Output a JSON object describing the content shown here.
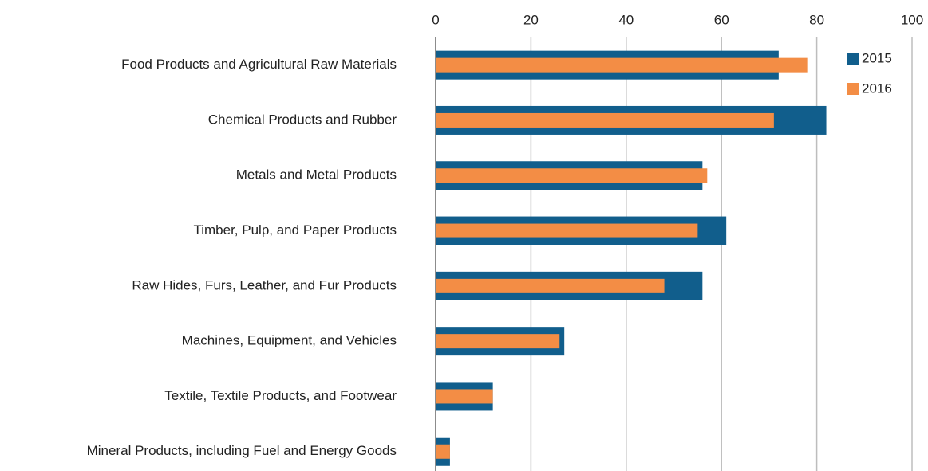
{
  "chart_data": {
    "type": "bar",
    "orientation": "horizontal",
    "categories": [
      "Food Products and Agricultural Raw Materials",
      "Chemical Products and Rubber",
      "Metals and Metal Products",
      "Timber, Pulp, and Paper Products",
      "Raw Hides, Furs, Leather, and Fur Products",
      "Machines, Equipment, and Vehicles",
      "Textile, Textile Products, and Footwear",
      "Mineral Products, including Fuel and Energy Goods"
    ],
    "series": [
      {
        "name": "2015",
        "color": "#115e8c",
        "values": [
          72,
          82,
          56,
          61,
          56,
          27,
          12,
          3
        ]
      },
      {
        "name": "2016",
        "color": "#f38d45",
        "values": [
          78,
          71,
          57,
          55,
          48,
          26,
          12,
          3
        ]
      }
    ],
    "xlim": [
      0,
      100
    ],
    "xticks": [
      0,
      20,
      40,
      60,
      80,
      100
    ],
    "grid": true,
    "legend": "top-right"
  }
}
